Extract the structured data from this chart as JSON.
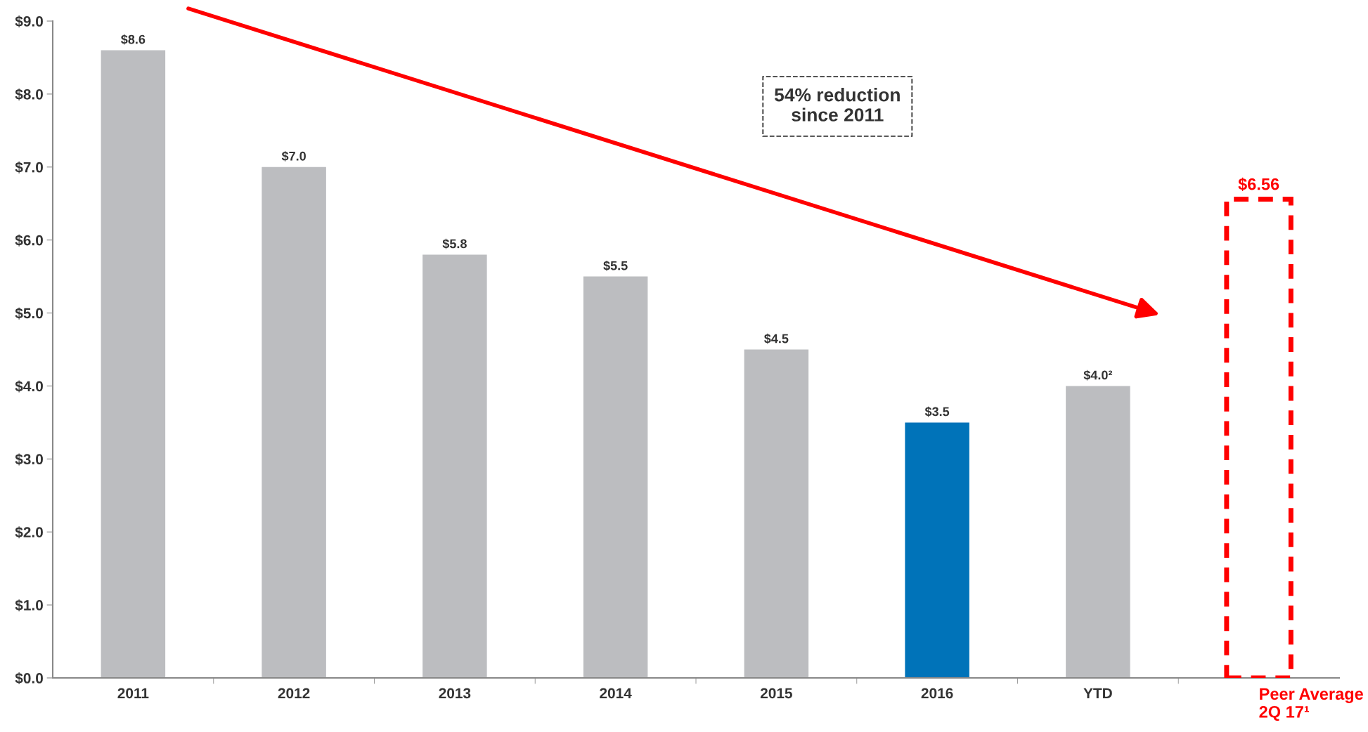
{
  "chart_data": {
    "type": "bar",
    "categories": [
      "2011",
      "2012",
      "2013",
      "2014",
      "2015",
      "2016",
      "YTD",
      "Peer Average\n2Q 17¹"
    ],
    "series": [
      {
        "colors": [
          "#bcbdc0",
          "#bcbdc0",
          "#bcbdc0",
          "#bcbdc0",
          "#bcbdc0",
          "#0073b9",
          "#bcbdc0",
          null
        ],
        "values": [
          8.6,
          7.0,
          5.8,
          5.5,
          4.5,
          3.5,
          4.0,
          null
        ],
        "value_labels": [
          "$8.6",
          "$7.0",
          "$5.8",
          "$5.5",
          "$4.5",
          "$3.5",
          "$4.0²",
          null
        ]
      },
      {
        "color": "#ff0000",
        "line_style": "dashed",
        "values": [
          null,
          null,
          null,
          null,
          null,
          null,
          null,
          6.56
        ],
        "value_labels": [
          null,
          null,
          null,
          null,
          null,
          null,
          null,
          "$6.56"
        ]
      }
    ],
    "ylim": [
      0,
      9
    ],
    "yticks": [
      {
        "value": 0,
        "label": "$0.0"
      },
      {
        "value": 1,
        "label": "$1.0"
      },
      {
        "value": 2,
        "label": "$2.0"
      },
      {
        "value": 3,
        "label": "$3.0"
      },
      {
        "value": 4,
        "label": "$4.0"
      },
      {
        "value": 5,
        "label": "$5.0"
      },
      {
        "value": 6,
        "label": "$6.0"
      },
      {
        "value": 7,
        "label": "$7.0"
      },
      {
        "value": 8,
        "label": "$8.0"
      },
      {
        "value": 9,
        "label": "$9.0"
      }
    ],
    "grid": false,
    "annotations": [
      "54% reduction\nsince 2011"
    ]
  }
}
